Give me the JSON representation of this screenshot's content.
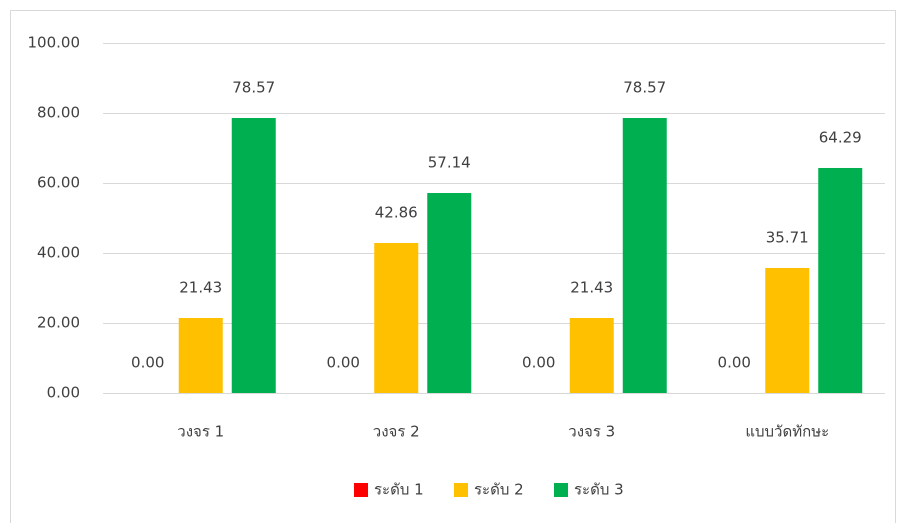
{
  "chart_data": {
    "type": "bar",
    "categories": [
      "วงจร 1",
      "วงจร 2",
      "วงจร 3",
      "แบบวัดทักษะ"
    ],
    "series": [
      {
        "name": "ระดับ 1",
        "color": "#ff0000",
        "values": [
          0,
          0,
          0,
          0
        ],
        "value_labels": [
          "0.00",
          "0.00",
          "0.00",
          "0.00"
        ]
      },
      {
        "name": "ระดับ 2",
        "color": "#ffc000",
        "values": [
          21.43,
          42.86,
          21.43,
          35.71
        ],
        "value_labels": [
          "21.43",
          "42.86",
          "21.43",
          "35.71"
        ]
      },
      {
        "name": "ระดับ 3",
        "color": "#00b050",
        "values": [
          78.57,
          57.14,
          78.57,
          64.29
        ],
        "value_labels": [
          "78.57",
          "57.14",
          "78.57",
          "64.29"
        ]
      }
    ],
    "ylim": [
      0,
      100
    ],
    "yticks": [
      {
        "value": 0,
        "label": "0.00"
      },
      {
        "value": 20,
        "label": "20.00"
      },
      {
        "value": 40,
        "label": "40.00"
      },
      {
        "value": 60,
        "label": "60.00"
      },
      {
        "value": 80,
        "label": "80.00"
      },
      {
        "value": 100,
        "label": "100.00"
      }
    ],
    "grid": true,
    "legend": "bottom"
  }
}
